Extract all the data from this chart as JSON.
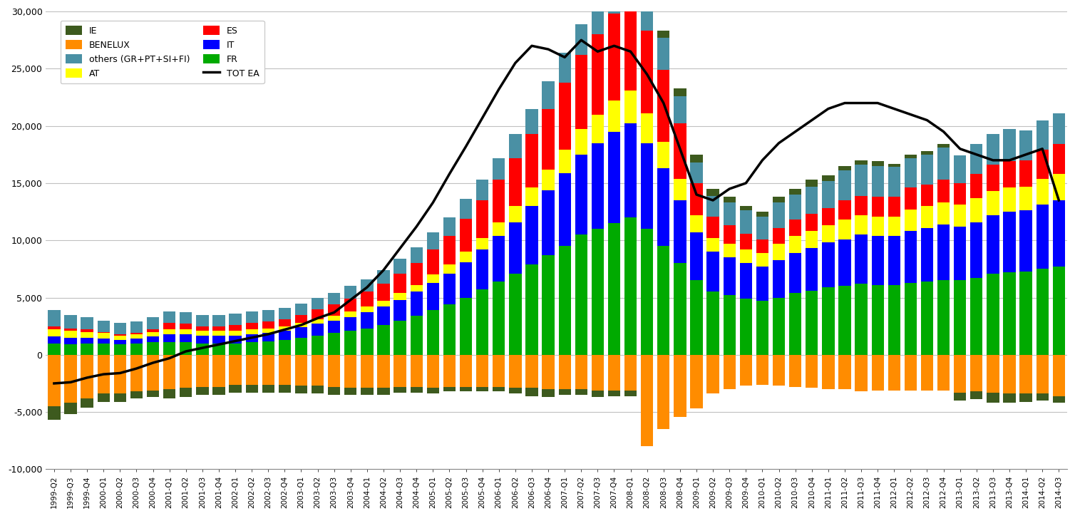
{
  "quarters": [
    "1999-Q2",
    "1999-Q3",
    "1999-Q4",
    "2000-Q1",
    "2000-Q2",
    "2000-Q3",
    "2000-Q4",
    "2001-Q1",
    "2001-Q2",
    "2001-Q3",
    "2001-Q4",
    "2002-Q1",
    "2002-Q2",
    "2002-Q3",
    "2002-Q4",
    "2003-Q1",
    "2003-Q2",
    "2003-Q3",
    "2003-Q4",
    "2004-Q1",
    "2004-Q2",
    "2004-Q3",
    "2004-Q4",
    "2005-Q1",
    "2005-Q2",
    "2005-Q3",
    "2005-Q4",
    "2006-Q1",
    "2006-Q2",
    "2006-Q3",
    "2006-Q4",
    "2007-Q1",
    "2007-Q2",
    "2007-Q3",
    "2007-Q4",
    "2008-Q1",
    "2008-Q2",
    "2008-Q3",
    "2008-Q4",
    "2009-Q1",
    "2009-Q2",
    "2009-Q3",
    "2009-Q4",
    "2010-Q1",
    "2010-Q2",
    "2010-Q3",
    "2010-Q4",
    "2011-Q1",
    "2011-Q2",
    "2011-Q3",
    "2011-Q4",
    "2012-Q1",
    "2012-Q2",
    "2012-Q3",
    "2012-Q4",
    "2013-Q1",
    "2013-Q2",
    "2013-Q3",
    "2013-Q4",
    "2014-Q1",
    "2014-Q2",
    "2014-Q3"
  ],
  "IE": [
    -1200,
    -1000,
    -800,
    -700,
    -700,
    -600,
    -600,
    -800,
    -800,
    -700,
    -700,
    -700,
    -700,
    -700,
    -700,
    -700,
    -700,
    -700,
    -600,
    -600,
    -600,
    -500,
    -500,
    -500,
    -400,
    -400,
    -400,
    -400,
    -500,
    -700,
    -700,
    -500,
    -500,
    -600,
    -500,
    -500,
    400,
    600,
    700,
    700,
    600,
    500,
    400,
    400,
    500,
    500,
    600,
    500,
    400,
    400,
    400,
    300,
    300,
    300,
    300,
    -700,
    -700,
    -900,
    -800,
    -700,
    -600,
    -600
  ],
  "others": [
    1400,
    1200,
    1100,
    1000,
    1000,
    1000,
    1100,
    1000,
    1000,
    1000,
    1000,
    1000,
    1000,
    1000,
    1000,
    1000,
    1000,
    1000,
    1100,
    1100,
    1200,
    1300,
    1400,
    1500,
    1600,
    1700,
    1800,
    1900,
    2100,
    2200,
    2400,
    2600,
    2700,
    2900,
    3100,
    2500,
    2600,
    2800,
    2400,
    1800,
    1800,
    2000,
    2000,
    2000,
    2200,
    2200,
    2400,
    2400,
    2600,
    2700,
    2700,
    2600,
    2600,
    2600,
    2800,
    2400,
    2600,
    2700,
    2800,
    2600,
    2600,
    2700
  ],
  "ES": [
    300,
    200,
    200,
    100,
    100,
    100,
    200,
    600,
    500,
    400,
    400,
    500,
    600,
    600,
    600,
    700,
    900,
    1000,
    1100,
    1300,
    1500,
    1700,
    1900,
    2200,
    2500,
    2900,
    3300,
    3700,
    4200,
    4700,
    5300,
    5900,
    6500,
    7000,
    7600,
    8000,
    7200,
    6300,
    4800,
    2800,
    1900,
    1600,
    1400,
    1200,
    1400,
    1400,
    1500,
    1500,
    1700,
    1700,
    1700,
    1700,
    1900,
    1900,
    2000,
    1900,
    2100,
    2300,
    2300,
    2300,
    2500,
    2600
  ],
  "FR": [
    1000,
    900,
    1000,
    1000,
    900,
    1000,
    1100,
    1100,
    1100,
    1000,
    1000,
    1000,
    1100,
    1200,
    1300,
    1500,
    1700,
    1900,
    2100,
    2300,
    2600,
    3000,
    3400,
    3900,
    4400,
    5000,
    5700,
    6400,
    7100,
    7900,
    8700,
    9500,
    10500,
    11000,
    11500,
    12000,
    11000,
    9500,
    8000,
    6500,
    5500,
    5200,
    4900,
    4700,
    5000,
    5400,
    5600,
    5900,
    6000,
    6200,
    6100,
    6100,
    6300,
    6400,
    6500,
    6500,
    6700,
    7100,
    7200,
    7300,
    7500,
    7700
  ],
  "AT": [
    600,
    600,
    500,
    500,
    400,
    400,
    400,
    400,
    400,
    400,
    400,
    400,
    400,
    400,
    400,
    400,
    400,
    400,
    500,
    500,
    500,
    600,
    600,
    700,
    800,
    900,
    1000,
    1200,
    1400,
    1600,
    1800,
    2000,
    2200,
    2500,
    2700,
    2900,
    2600,
    2300,
    1900,
    1500,
    1200,
    1200,
    1200,
    1200,
    1400,
    1500,
    1500,
    1500,
    1700,
    1700,
    1700,
    1700,
    1900,
    1900,
    1900,
    1900,
    2100,
    2100,
    2100,
    2100,
    2300,
    2300
  ],
  "IT": [
    600,
    600,
    500,
    400,
    400,
    400,
    500,
    700,
    700,
    700,
    700,
    700,
    700,
    700,
    800,
    900,
    1000,
    1100,
    1200,
    1400,
    1600,
    1800,
    2100,
    2400,
    2700,
    3100,
    3500,
    4000,
    4500,
    5100,
    5700,
    6400,
    7000,
    7500,
    8000,
    8200,
    7500,
    6800,
    5500,
    4200,
    3500,
    3300,
    3100,
    3000,
    3300,
    3500,
    3700,
    3900,
    4100,
    4300,
    4300,
    4300,
    4500,
    4700,
    4900,
    4700,
    4900,
    5100,
    5300,
    5300,
    5600,
    5800
  ],
  "BENELUX": [
    -4500,
    -4200,
    -3800,
    -3400,
    -3400,
    -3200,
    -3100,
    -3000,
    -2900,
    -2800,
    -2800,
    -2600,
    -2600,
    -2600,
    -2600,
    -2700,
    -2700,
    -2800,
    -2900,
    -2900,
    -2900,
    -2800,
    -2800,
    -2900,
    -2800,
    -2800,
    -2800,
    -2800,
    -2900,
    -2900,
    -3000,
    -3000,
    -3000,
    -3100,
    -3100,
    -3100,
    -8000,
    -6500,
    -5400,
    -4700,
    -3400,
    -3000,
    -2700,
    -2600,
    -2700,
    -2800,
    -2900,
    -3000,
    -3000,
    -3200,
    -3100,
    -3100,
    -3100,
    -3100,
    -3100,
    -3300,
    -3200,
    -3300,
    -3400,
    -3400,
    -3400,
    -3600
  ],
  "TOT_EA": [
    -2500,
    -2400,
    -2000,
    -1700,
    -1600,
    -1200,
    -700,
    -300,
    300,
    600,
    900,
    1200,
    1500,
    1800,
    2200,
    2600,
    3200,
    3700,
    4800,
    5900,
    7400,
    9300,
    11200,
    13300,
    15800,
    18200,
    20700,
    23200,
    25500,
    27000,
    26700,
    26000,
    27500,
    26500,
    27000,
    26500,
    24500,
    22000,
    18000,
    14000,
    13500,
    14500,
    15000,
    17000,
    18500,
    19500,
    20500,
    21500,
    22000,
    22000,
    22000,
    21500,
    21000,
    20500,
    19500,
    18000,
    17500,
    17000,
    17000,
    17500,
    18000,
    13500
  ],
  "colors": {
    "IE": "#3d5a1e",
    "others": "#4a90a4",
    "ES": "#ff0000",
    "FR": "#00aa00",
    "AT": "#ffff00",
    "IT": "#0000ff",
    "BENELUX": "#ff8c00",
    "TOT_EA": "#000000"
  },
  "ylim": [
    -10000,
    30000
  ],
  "yticks": [
    -10000,
    -5000,
    0,
    5000,
    10000,
    15000,
    20000,
    25000,
    30000
  ],
  "bg_color": "#ffffff",
  "grid_color": "#c0c0c0"
}
